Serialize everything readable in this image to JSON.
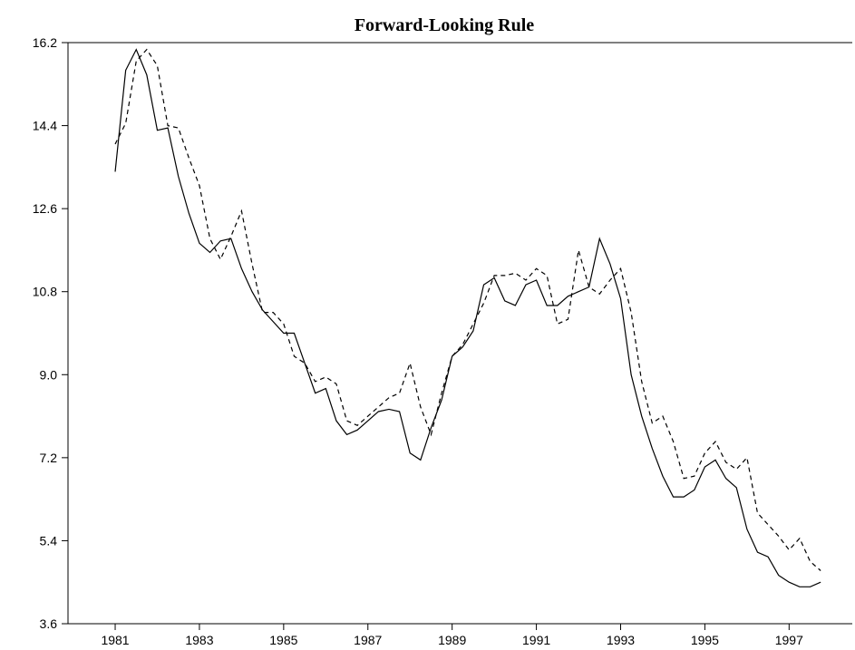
{
  "chart_data": {
    "type": "line",
    "title": "Forward-Looking Rule",
    "x": [
      1981,
      1981.25,
      1981.5,
      1981.75,
      1982,
      1982.25,
      1982.5,
      1982.75,
      1983,
      1983.25,
      1983.5,
      1983.75,
      1984,
      1984.25,
      1984.5,
      1984.75,
      1985,
      1985.25,
      1985.5,
      1985.75,
      1986,
      1986.25,
      1986.5,
      1986.75,
      1987,
      1987.25,
      1987.5,
      1987.75,
      1988,
      1988.25,
      1988.5,
      1988.75,
      1989,
      1989.25,
      1989.5,
      1989.75,
      1990,
      1990.25,
      1990.5,
      1990.75,
      1991,
      1991.25,
      1991.5,
      1991.75,
      1992,
      1992.25,
      1992.5,
      1992.75,
      1993,
      1993.25,
      1993.5,
      1993.75,
      1994,
      1994.25,
      1994.5,
      1994.75,
      1995,
      1995.25,
      1995.5,
      1995.75,
      1996,
      1996.25,
      1996.5,
      1996.75,
      1997,
      1997.25,
      1997.5,
      1997.75
    ],
    "series": [
      {
        "color": "#000000",
        "dash": "none",
        "values": [
          13.4,
          15.6,
          16.05,
          15.5,
          14.3,
          14.35,
          13.3,
          12.5,
          11.85,
          11.65,
          11.9,
          11.95,
          11.3,
          10.8,
          10.4,
          10.15,
          9.9,
          9.9,
          9.25,
          8.6,
          8.7,
          8.0,
          7.7,
          7.8,
          8.0,
          8.2,
          8.25,
          8.2,
          7.3,
          7.15,
          7.85,
          8.45,
          9.4,
          9.6,
          9.95,
          10.95,
          11.1,
          10.6,
          10.5,
          10.95,
          11.05,
          10.5,
          10.5,
          10.7,
          10.8,
          10.9,
          11.95,
          11.4,
          10.65,
          9.0,
          8.1,
          7.4,
          6.8,
          6.35,
          6.35,
          6.5,
          7.0,
          7.15,
          6.75,
          6.55,
          5.65,
          5.15,
          5.05,
          4.65,
          4.5,
          4.4,
          4.4,
          4.5
        ]
      },
      {
        "color": "#000000",
        "dash": "5,4",
        "values": [
          14.0,
          14.45,
          15.8,
          16.05,
          15.7,
          14.4,
          14.35,
          13.7,
          13.1,
          11.95,
          11.5,
          12.0,
          12.55,
          11.4,
          10.35,
          10.35,
          10.1,
          9.4,
          9.25,
          8.85,
          8.95,
          8.8,
          8.0,
          7.9,
          8.1,
          8.3,
          8.5,
          8.6,
          9.25,
          8.3,
          7.7,
          8.6,
          9.4,
          9.65,
          10.1,
          10.55,
          11.15,
          11.15,
          11.2,
          11.05,
          11.3,
          11.15,
          10.1,
          10.2,
          11.7,
          10.9,
          10.75,
          11.05,
          11.3,
          10.35,
          8.85,
          7.95,
          8.1,
          7.55,
          6.75,
          6.8,
          7.3,
          7.55,
          7.1,
          6.95,
          7.2,
          6.0,
          5.75,
          5.5,
          5.2,
          5.45,
          4.95,
          4.75
        ]
      }
    ],
    "xlim": [
      1979.88,
      1998.5
    ],
    "xticks": [
      1981,
      1983,
      1985,
      1987,
      1989,
      1991,
      1993,
      1995,
      1997
    ],
    "ylim": [
      3.6,
      16.2
    ],
    "yticks": [
      {
        "value": 3.6,
        "label": "3.6"
      },
      {
        "value": 5.4,
        "label": "5.4"
      },
      {
        "value": 7.2,
        "label": "7.2"
      },
      {
        "value": 9.0,
        "label": "9.0"
      },
      {
        "value": 10.8,
        "label": "10.8"
      },
      {
        "value": 12.6,
        "label": "12.6"
      },
      {
        "value": 14.4,
        "label": "14.4"
      },
      {
        "value": 16.2,
        "label": "16.2"
      }
    ]
  }
}
